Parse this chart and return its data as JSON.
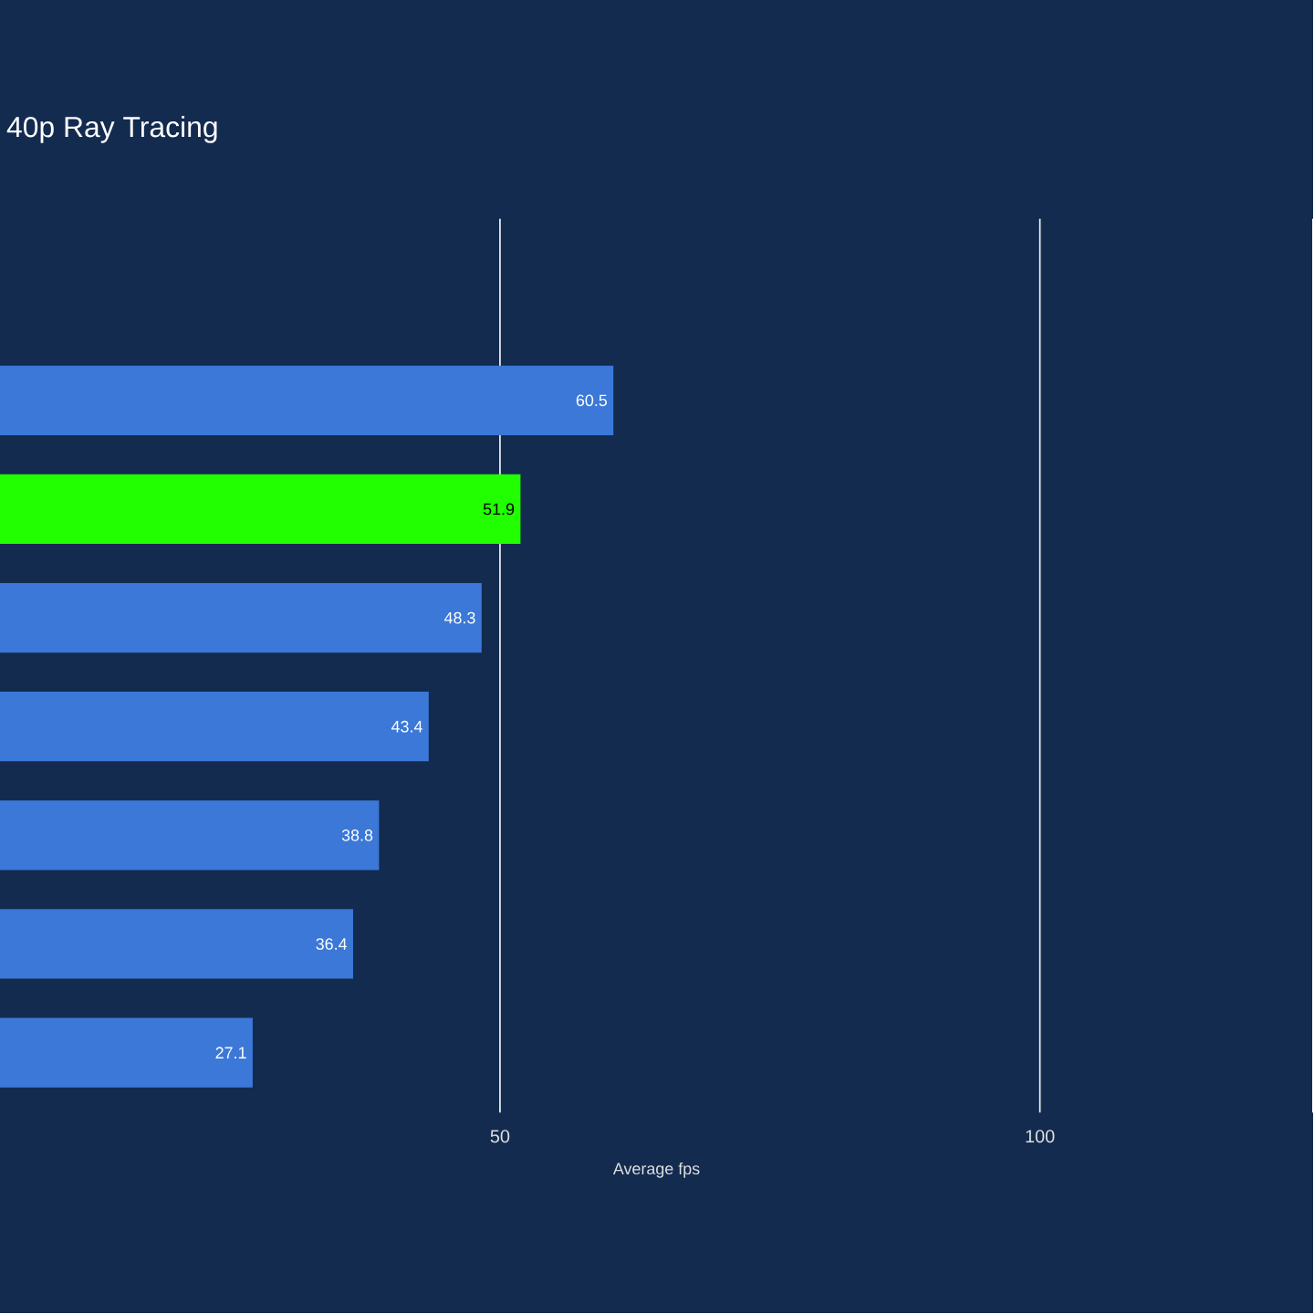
{
  "chart_data": {
    "type": "bar",
    "orientation": "horizontal",
    "title": "40p Ray Tracing",
    "xlabel": "Average fps",
    "categories": [
      null,
      null,
      null,
      null,
      null,
      null,
      null,
      null
    ],
    "values": [
      null,
      60.5,
      51.9,
      48.3,
      43.4,
      38.8,
      36.4,
      27.1
    ],
    "value_labels": [
      null,
      "60.5",
      "51.9",
      "48.3",
      "43.4",
      "38.8",
      "36.4",
      "27.1"
    ],
    "colors": [
      "#3b78d8",
      "#3b78d8",
      "#22ff00",
      "#3b78d8",
      "#3b78d8",
      "#3b78d8",
      "#3b78d8",
      "#3b78d8"
    ],
    "xlim": [
      3.7,
      125.3
    ],
    "xticks": [
      50,
      100
    ],
    "grid": "x",
    "tick_labels": "x"
  }
}
